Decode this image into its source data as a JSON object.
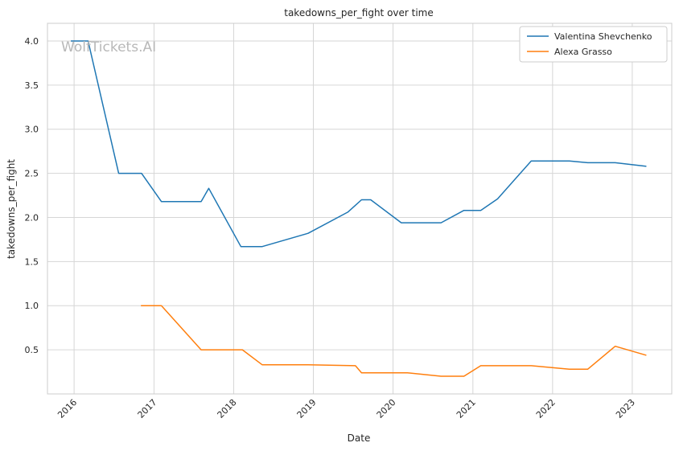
{
  "chart_data": {
    "type": "line",
    "title": "takedowns_per_fight over time",
    "xlabel": "Date",
    "ylabel": "takedowns_per_fight",
    "watermark": "WolfTickets.AI",
    "grid": true,
    "legend_position": "top-right",
    "xlim": [
      "2015-09-01",
      "2023-07-01"
    ],
    "ylim": [
      0.0,
      4.2
    ],
    "x_ticks": [
      "2016",
      "2017",
      "2018",
      "2019",
      "2020",
      "2021",
      "2022",
      "2023"
    ],
    "y_ticks": [
      "0.5",
      "1.0",
      "1.5",
      "2.0",
      "2.5",
      "3.0",
      "3.5",
      "4.0"
    ],
    "series": [
      {
        "name": "Valentina Shevchenko",
        "color": "#1f77b4",
        "points": [
          [
            "2015-12-20",
            4.0
          ],
          [
            "2016-03-05",
            4.0
          ],
          [
            "2016-07-23",
            2.5
          ],
          [
            "2016-11-05",
            2.5
          ],
          [
            "2017-02-04",
            2.18
          ],
          [
            "2017-08-05",
            2.18
          ],
          [
            "2017-09-09",
            2.33
          ],
          [
            "2018-02-03",
            1.67
          ],
          [
            "2018-05-12",
            1.67
          ],
          [
            "2018-12-08",
            1.82
          ],
          [
            "2019-06-08",
            2.06
          ],
          [
            "2019-08-10",
            2.2
          ],
          [
            "2019-09-21",
            2.2
          ],
          [
            "2020-02-08",
            1.94
          ],
          [
            "2020-08-08",
            1.94
          ],
          [
            "2020-11-21",
            2.08
          ],
          [
            "2021-02-06",
            2.08
          ],
          [
            "2021-04-24",
            2.21
          ],
          [
            "2021-09-25",
            2.64
          ],
          [
            "2022-03-19",
            2.64
          ],
          [
            "2022-06-11",
            2.62
          ],
          [
            "2022-10-15",
            2.62
          ],
          [
            "2023-03-04",
            2.58
          ]
        ]
      },
      {
        "name": "Alexa Grasso",
        "color": "#ff7f0e",
        "points": [
          [
            "2016-11-05",
            1.0
          ],
          [
            "2017-02-04",
            1.0
          ],
          [
            "2017-08-05",
            0.5
          ],
          [
            "2018-02-10",
            0.5
          ],
          [
            "2018-05-12",
            0.33
          ],
          [
            "2018-12-08",
            0.33
          ],
          [
            "2019-07-13",
            0.32
          ],
          [
            "2019-08-10",
            0.24
          ],
          [
            "2020-03-07",
            0.24
          ],
          [
            "2020-08-08",
            0.2
          ],
          [
            "2020-11-21",
            0.2
          ],
          [
            "2021-02-06",
            0.32
          ],
          [
            "2021-09-25",
            0.32
          ],
          [
            "2022-03-19",
            0.28
          ],
          [
            "2022-06-11",
            0.28
          ],
          [
            "2022-10-15",
            0.54
          ],
          [
            "2023-03-04",
            0.44
          ]
        ]
      }
    ]
  }
}
